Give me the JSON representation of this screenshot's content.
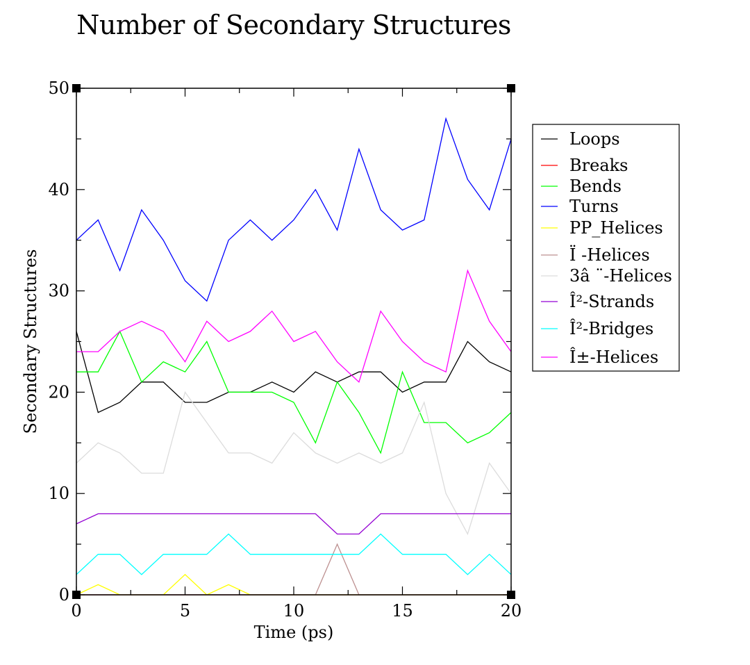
{
  "chart_data": {
    "type": "line",
    "title": "Number of Secondary Structures",
    "xlabel": "Time (ps)",
    "ylabel": "Secondary Structures",
    "xlim": [
      0,
      20
    ],
    "ylim": [
      0,
      50
    ],
    "xticks": [
      0,
      5,
      10,
      15,
      20
    ],
    "yticks": [
      0,
      10,
      20,
      30,
      40,
      50
    ],
    "grid": false,
    "legend_position": "right",
    "x": [
      0,
      1,
      2,
      3,
      4,
      5,
      6,
      7,
      8,
      9,
      10,
      11,
      12,
      13,
      14,
      15,
      16,
      17,
      18,
      19,
      20
    ],
    "series": [
      {
        "name": "Loops",
        "color": "#000000",
        "values": [
          26,
          18,
          19,
          21,
          21,
          19,
          19,
          20,
          20,
          21,
          20,
          22,
          21,
          22,
          22,
          20,
          21,
          21,
          25,
          23,
          22
        ]
      },
      {
        "name": "Breaks",
        "color": "#ff0000",
        "values": [
          0,
          0,
          0,
          0,
          0,
          0,
          0,
          0,
          0,
          0,
          0,
          0,
          0,
          0,
          0,
          0,
          0,
          0,
          0,
          0,
          0
        ]
      },
      {
        "name": "Bends",
        "color": "#00ff00",
        "values": [
          22,
          22,
          26,
          21,
          23,
          22,
          25,
          20,
          20,
          20,
          19,
          15,
          21,
          18,
          14,
          22,
          17,
          17,
          15,
          16,
          18
        ]
      },
      {
        "name": "Turns",
        "color": "#0000ff",
        "values": [
          35,
          37,
          32,
          38,
          35,
          31,
          29,
          35,
          37,
          35,
          37,
          40,
          36,
          44,
          38,
          36,
          37,
          47,
          41,
          38,
          45
        ]
      },
      {
        "name": "PP_Helices",
        "color": "#ffff00",
        "values": [
          0,
          1,
          0,
          0,
          0,
          2,
          0,
          1,
          0,
          0,
          0,
          0,
          0,
          0,
          0,
          0,
          0,
          0,
          0,
          0,
          0
        ]
      },
      {
        "name": "Ï -Helices",
        "color": "#bc8f8f",
        "values": [
          0,
          0,
          0,
          0,
          0,
          0,
          0,
          0,
          0,
          0,
          0,
          0,
          5,
          0,
          0,
          0,
          0,
          0,
          0,
          0,
          0
        ]
      },
      {
        "name": "3â ¨-Helices",
        "color": "#dcdcdc",
        "values": [
          13,
          15,
          14,
          12,
          12,
          20,
          17,
          14,
          14,
          13,
          16,
          14,
          13,
          14,
          13,
          14,
          19,
          10,
          6,
          13,
          10
        ]
      },
      {
        "name": "Î²-Strands",
        "color": "#9400d3",
        "values": [
          7,
          8,
          8,
          8,
          8,
          8,
          8,
          8,
          8,
          8,
          8,
          8,
          6,
          6,
          8,
          8,
          8,
          8,
          8,
          8,
          8
        ]
      },
      {
        "name": "Î²-Bridges",
        "color": "#00ffff",
        "values": [
          2,
          4,
          4,
          2,
          4,
          4,
          4,
          6,
          4,
          4,
          4,
          4,
          4,
          4,
          6,
          4,
          4,
          4,
          2,
          4,
          2
        ]
      },
      {
        "name": "Î±-Helices",
        "color": "#ff00ff",
        "values": [
          24,
          24,
          26,
          27,
          26,
          23,
          27,
          25,
          26,
          28,
          25,
          26,
          23,
          21,
          28,
          25,
          23,
          22,
          32,
          27,
          24
        ]
      }
    ]
  }
}
